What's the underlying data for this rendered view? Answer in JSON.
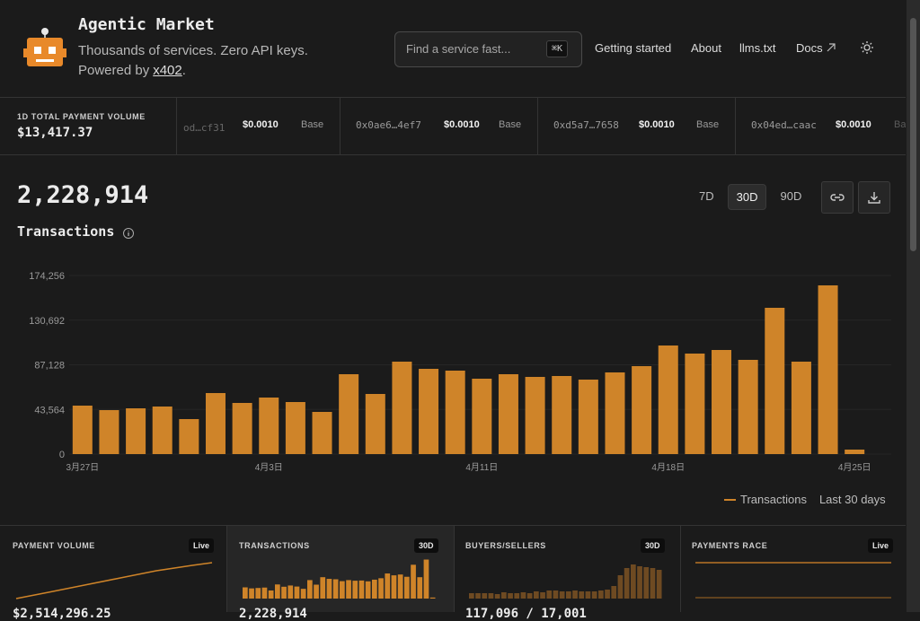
{
  "header": {
    "title": "Agentic Market",
    "tagline": "Thousands of services. Zero API keys.",
    "powered_prefix": "Powered by",
    "powered_link": "x402",
    "powered_suffix": "."
  },
  "search": {
    "placeholder": "Find a service fast...",
    "shortcut": "⌘K"
  },
  "nav": [
    "Getting started",
    "About",
    "llms.txt",
    "Docs"
  ],
  "ticker": {
    "label": "1D TOTAL PAYMENT VOLUME",
    "total": "$13,417.37",
    "items": [
      {
        "address": "od…cf31",
        "amount": "$0.0010",
        "network": "Base"
      },
      {
        "address": "0x0ae6…4ef7",
        "amount": "$0.0010",
        "network": "Base"
      },
      {
        "address": "0xd5a7…7658",
        "amount": "$0.0010",
        "network": "Base"
      },
      {
        "address": "0x04ed…caac",
        "amount": "$0.0010",
        "network": "Base"
      }
    ]
  },
  "chart_data": {
    "type": "bar",
    "title": "Transactions",
    "total": "2,228,914",
    "ranges": [
      "7D",
      "30D",
      "90D"
    ],
    "active_range": "30D",
    "categories": [
      "3月27日",
      null,
      null,
      null,
      null,
      null,
      null,
      "4月3日",
      null,
      null,
      null,
      null,
      null,
      null,
      null,
      "4月11日",
      null,
      null,
      null,
      null,
      null,
      null,
      "4月18日",
      null,
      null,
      null,
      null,
      null,
      null,
      "4月25日"
    ],
    "series": [
      {
        "name": "Transactions",
        "color": "#cf8429",
        "values": [
          47290,
          42910,
          44660,
          46410,
          34150,
          59550,
          49910,
          55170,
          50790,
          41160,
          77940,
          58670,
          90200,
          83190,
          81440,
          73560,
          77940,
          75310,
          76190,
          72680,
          79690,
          85820,
          105960,
          98080,
          101580,
          91950,
          142740,
          90200,
          164630,
          4380
        ]
      }
    ],
    "period": "Last 30 days",
    "ylim": [
      0,
      174256
    ],
    "yticks": [
      0,
      {
        "value": 43564,
        "label": "43,564"
      },
      {
        "value": 87128,
        "label": "87,128"
      },
      {
        "value": 130692,
        "label": "130,692"
      },
      {
        "value": 174256,
        "label": "174,256"
      }
    ],
    "grid": true
  },
  "cards": [
    {
      "title": "PAYMENT VOLUME",
      "badge": "Live",
      "value": "$2,514,296.25"
    },
    {
      "title": "TRANSACTIONS",
      "badge": "30D",
      "value": "2,228,914"
    },
    {
      "title": "BUYERS/SELLERS",
      "badge": "30D",
      "value": "117,096 / 17,001"
    },
    {
      "title": "PAYMENTS RACE",
      "badge": "Live"
    }
  ]
}
